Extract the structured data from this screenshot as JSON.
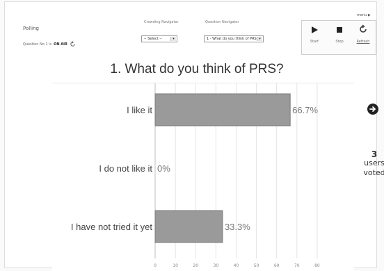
{
  "header": {
    "title": "Polling",
    "question_status_prefix": "Question No 1 is",
    "question_status_value": "ON AIR",
    "menu_label": "menu"
  },
  "navigators": {
    "crowding": {
      "label": "Crowding Navigator",
      "value": "-- Select --"
    },
    "question": {
      "label": "Question Navigator",
      "value": "1 - What do you think of PRS?"
    }
  },
  "controls": {
    "start_label": "Start",
    "stop_label": "Stop",
    "refresh_label": "Refresh"
  },
  "question_title": "1. What do you think of PRS?",
  "votes": {
    "count": "3",
    "label_line1": "users",
    "label_line2": "voted"
  },
  "colors": {
    "bar_fill": "#9a9a9a",
    "bar_stroke": "#7a7a7a",
    "grid": "#e4e4e4",
    "label": "#444444",
    "value_label": "#777777"
  },
  "chart_data": {
    "type": "bar",
    "orientation": "horizontal",
    "categories": [
      "I like it",
      "I do not like it",
      "I have not tried it yet"
    ],
    "values": [
      66.7,
      0,
      33.3
    ],
    "value_labels": [
      "66.7%",
      "0%",
      "33.3%"
    ],
    "xlim": [
      0,
      90
    ],
    "xticks": [
      0,
      10,
      20,
      30,
      40,
      50,
      60,
      70,
      80
    ],
    "grid": true
  }
}
